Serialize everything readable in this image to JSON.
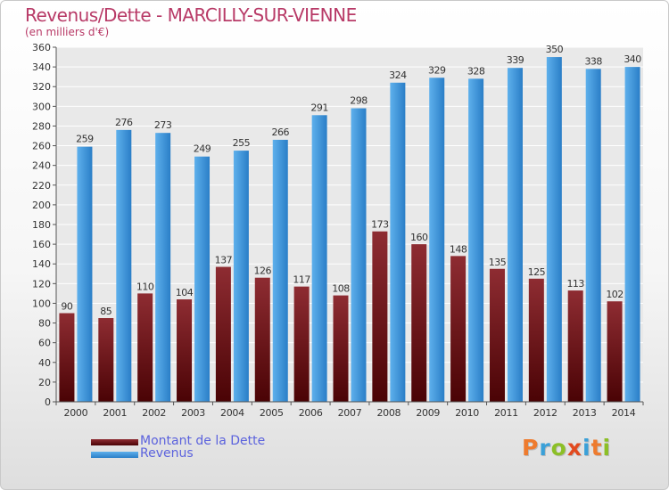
{
  "header": {
    "title": "Revenus/Dette - MARCILLY-SUR-VIENNE",
    "subtitle": "(en milliers d'€)"
  },
  "logo": {
    "text": "Proxiti",
    "letters": [
      "P",
      "r",
      "o",
      "x",
      "i",
      "t",
      "i"
    ],
    "letter_colors": [
      "#ee7b2e",
      "#3aa0d8",
      "#8cbf26",
      "#e24a1f",
      "#3aa0d8",
      "#ee7b2e",
      "#8cbf26"
    ]
  },
  "colors": {
    "title": "#b83a67",
    "legend_text": "#5b62dd",
    "dette_top": "#8e2c32",
    "dette_bottom": "#4a0305",
    "revenus_top": "#5eb0ec",
    "revenus_bottom": "#2a7ec7",
    "grid": "#ffffff",
    "plot_bg": "#e9e9e9"
  },
  "chart_data": {
    "type": "bar",
    "title": "Revenus/Dette - MARCILLY-SUR-VIENNE",
    "subtitle": "(en milliers d'€)",
    "categories": [
      "2000",
      "2001",
      "2002",
      "2003",
      "2004",
      "2005",
      "2006",
      "2007",
      "2008",
      "2009",
      "2010",
      "2011",
      "2012",
      "2013",
      "2014"
    ],
    "series": [
      {
        "name": "Montant de la Dette",
        "values": [
          90,
          85,
          110,
          104,
          137,
          126,
          117,
          108,
          173,
          160,
          148,
          135,
          125,
          113,
          102
        ],
        "labels": [
          "90",
          "85",
          "110",
          "104",
          "137",
          "126",
          "117",
          "108",
          "173",
          "160",
          "148",
          "135",
          "125",
          "113",
          "102"
        ]
      },
      {
        "name": "Revenus",
        "values": [
          259,
          276,
          273,
          249,
          255,
          266,
          291,
          298,
          324,
          329,
          328,
          339,
          350,
          338,
          340
        ],
        "labels": [
          "259",
          "276",
          "273",
          "249",
          "255",
          "266",
          "291",
          "298",
          "324",
          "329",
          "328",
          "339",
          "350",
          "338",
          "340"
        ]
      }
    ],
    "ylim": [
      0,
      360
    ],
    "yticks": [
      0,
      20,
      40,
      60,
      80,
      100,
      120,
      140,
      160,
      180,
      200,
      220,
      240,
      260,
      280,
      300,
      320,
      340,
      360
    ],
    "ytick_labels": [
      "0",
      "20",
      "40",
      "60",
      "80",
      "100",
      "120",
      "140",
      "160",
      "180",
      "200",
      "220",
      "240",
      "260",
      "280",
      "300",
      "320",
      "340",
      "360"
    ],
    "xlabel": "",
    "ylabel": "",
    "grid": true,
    "legend_position": "bottom-left"
  }
}
